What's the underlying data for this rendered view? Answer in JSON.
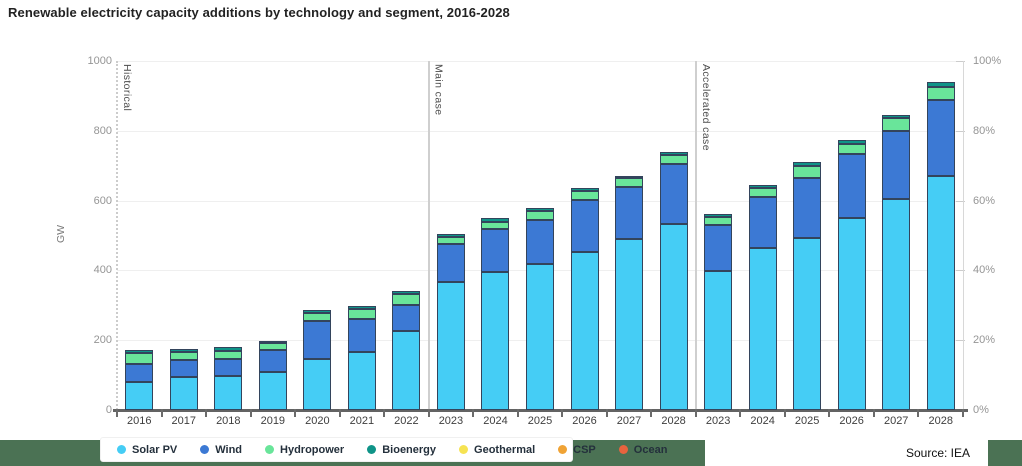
{
  "title": "Renewable electricity capacity additions by technology and segment, 2016-2028",
  "footer": {
    "source": "Source: IEA"
  },
  "chart_data": {
    "type": "bar",
    "stacked": true,
    "title": "Renewable electricity capacity additions by technology and segment, 2016-2028",
    "xlabel": "",
    "ylabel": "GW",
    "ylim": [
      0,
      1000
    ],
    "y_ticks": [
      0,
      200,
      400,
      600,
      800,
      1000
    ],
    "y2_ticks": [
      "0%",
      "20%",
      "40%",
      "60%",
      "80%",
      "100%"
    ],
    "grid": true,
    "legend_position": "bottom",
    "groups": [
      {
        "label": "Historical",
        "categories": [
          "2016",
          "2017",
          "2018",
          "2019",
          "2020",
          "2021",
          "2022"
        ]
      },
      {
        "label": "Main case",
        "categories": [
          "2023",
          "2024",
          "2025",
          "2026",
          "2027",
          "2028"
        ]
      },
      {
        "label": "Accelerated case",
        "categories": [
          "2023",
          "2024",
          "2025",
          "2026",
          "2027",
          "2028"
        ]
      }
    ],
    "series": [
      {
        "name": "Solar PV",
        "color": "#45cdf5",
        "values": [
          80,
          94,
          96,
          110,
          145,
          165,
          225,
          368,
          395,
          418,
          454,
          490,
          532,
          398,
          465,
          494,
          551,
          605,
          670
        ]
      },
      {
        "name": "Wind",
        "color": "#3c79d4",
        "values": [
          52,
          50,
          50,
          62,
          110,
          96,
          76,
          108,
          123,
          127,
          147,
          150,
          173,
          132,
          144,
          170,
          183,
          195,
          219
        ]
      },
      {
        "name": "Hydropower",
        "color": "#69e59a",
        "values": [
          30,
          22,
          24,
          19,
          22,
          29,
          30,
          19,
          22,
          26,
          27,
          24,
          26,
          22,
          26,
          35,
          28,
          36,
          37
        ]
      },
      {
        "name": "Bioenergy",
        "color": "#0f9488",
        "values": [
          10,
          8,
          10,
          8,
          10,
          9,
          10,
          10,
          11,
          8,
          8,
          7,
          7,
          9,
          10,
          11,
          11,
          9,
          13
        ]
      },
      {
        "name": "Geothermal",
        "color": "#f6e352",
        "values": [
          0,
          0,
          0,
          0,
          0,
          0,
          0,
          0,
          0,
          0,
          0,
          0,
          0,
          0,
          0,
          0,
          0,
          0,
          0
        ]
      },
      {
        "name": "CSP",
        "color": "#f0a335",
        "values": [
          0,
          0,
          0,
          0,
          0,
          0,
          0,
          0,
          0,
          0,
          0,
          0,
          0,
          0,
          0,
          0,
          0,
          0,
          0
        ]
      },
      {
        "name": "Ocean",
        "color": "#e8633e",
        "values": [
          0,
          0,
          0,
          0,
          0,
          0,
          0,
          0,
          0,
          0,
          0,
          0,
          0,
          0,
          0,
          0,
          0,
          0,
          0
        ]
      }
    ],
    "totals": [
      172,
      174,
      180,
      199,
      287,
      299,
      341,
      505,
      551,
      579,
      636,
      671,
      738,
      561,
      645,
      710,
      773,
      845,
      939
    ]
  }
}
